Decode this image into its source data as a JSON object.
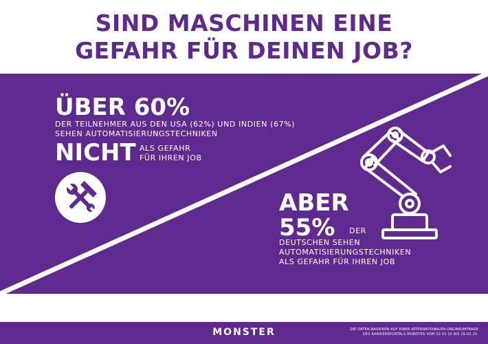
{
  "title": {
    "line1": "SIND MASCHINEN EINE",
    "line2": "GEFAHR FÜR DEINEN JOB?"
  },
  "colors": {
    "primary_purple": "#5f2a8f",
    "purple_light": "#7a43ab",
    "white": "#ffffff"
  },
  "left_stat": {
    "headline": "ÜBER 60%",
    "line1": "DER TEILNEHMER AUS DEN USA (62%) UND INDIEN (67%)",
    "line2": "SEHEN AUTOMATISIERUNGSTECHNIKEN",
    "emphasis": "NICHT",
    "tail_line1": "ALS GEFAHR",
    "tail_line2": "FÜR IHREN JOB",
    "icon": "hammer-wrench-icon"
  },
  "right_stat": {
    "headline1": "ABER",
    "headline2": "55%",
    "inline": "DER",
    "line1": "DEUTSCHEN SEHEN",
    "line2": "AUTOMATISIERUNGSTECHNIKEN",
    "line3": "ALS GEFAHR FÜR IHREN JOB",
    "icon": "robot-arm-icon"
  },
  "footer": {
    "brand": "MONSTER",
    "note_line1": "DIE DATEN BASIEREN AUF EINER INTERNATIONALEN ONLINEUMFRAGE",
    "note_line2": "DES KARRIEREPORTALS MONSTER VOM 02.02.15 BIS 16.02.15."
  }
}
